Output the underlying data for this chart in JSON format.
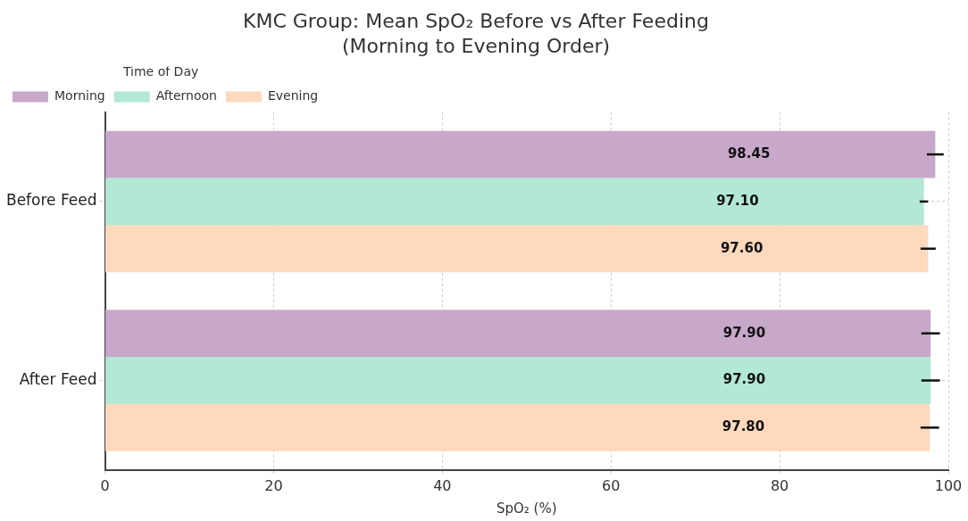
{
  "chart_data": {
    "type": "bar",
    "orientation": "horizontal",
    "title": "KMC Group: Mean SpO₂ Before vs After Feeding",
    "subtitle": "(Morning to Evening Order)",
    "xlabel": "SpO₂ (%)",
    "legend_title": "Time of Day",
    "categories": [
      "Before Feed",
      "After Feed"
    ],
    "series": [
      {
        "name": "Morning",
        "color": "#c8a8ca",
        "values": [
          98.45,
          97.9
        ],
        "errors": [
          1.0,
          1.1
        ],
        "value_labels": [
          "98.45",
          "97.90"
        ]
      },
      {
        "name": "Afternoon",
        "color": "#b2e8d4",
        "values": [
          97.1,
          97.9
        ],
        "errors": [
          0.5,
          1.1
        ],
        "value_labels": [
          "97.10",
          "97.90"
        ]
      },
      {
        "name": "Evening",
        "color": "#ffd9be",
        "values": [
          97.6,
          97.8
        ],
        "errors": [
          0.9,
          1.1
        ],
        "value_labels": [
          "97.60",
          "97.80"
        ]
      }
    ],
    "xlim": [
      0,
      100
    ],
    "xticks": [
      0,
      20,
      40,
      60,
      80,
      100
    ],
    "grid": true,
    "legend": "top left"
  }
}
